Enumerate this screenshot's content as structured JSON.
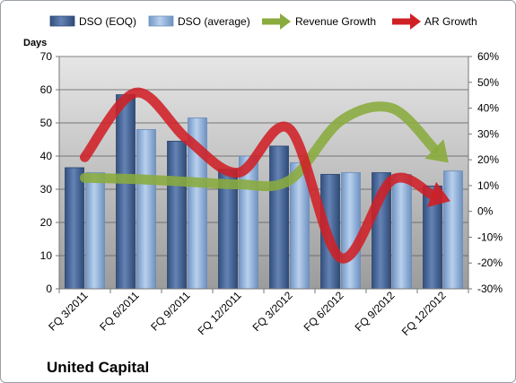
{
  "chart_data": {
    "type": "bar",
    "title": "United Capital",
    "ylabel": "Days",
    "categories": [
      "FQ 3/2011",
      "FQ 6/2011",
      "FQ 9/2011",
      "FQ 12/2011",
      "FQ 3/2012",
      "FQ 6/2012",
      "FQ 9/2012",
      "FQ 12/2012"
    ],
    "ylim": [
      0,
      70
    ],
    "yticks": [
      "0",
      "10",
      "20",
      "30",
      "40",
      "50",
      "60",
      "70"
    ],
    "y2lim": [
      -30,
      60
    ],
    "y2ticks": [
      "-30%",
      "-20%",
      "-10%",
      "0%",
      "10%",
      "20%",
      "30%",
      "40%",
      "50%",
      "60%"
    ],
    "legend_position": "top",
    "grid": true,
    "series": [
      {
        "name": "DSO (EOQ)",
        "kind": "bar",
        "axis": "left",
        "color": "#4f6e9e",
        "values": [
          36.5,
          58.5,
          44.5,
          36,
          43,
          34.5,
          35,
          31
        ]
      },
      {
        "name": "DSO (average)",
        "kind": "bar",
        "axis": "left",
        "color": "#9ab8dd",
        "values": [
          35,
          48,
          51.5,
          40,
          38,
          35,
          34.5,
          35.5
        ]
      },
      {
        "name": "Revenue Growth",
        "kind": "line",
        "axis": "right",
        "color": "#8aab3e",
        "values": [
          13,
          12.5,
          11.5,
          10.5,
          12,
          35,
          40,
          21
        ]
      },
      {
        "name": "AR Growth",
        "kind": "line",
        "axis": "right",
        "color": "#cf2026",
        "values": [
          21,
          46,
          28,
          15,
          32,
          -18,
          12,
          5
        ]
      }
    ]
  }
}
